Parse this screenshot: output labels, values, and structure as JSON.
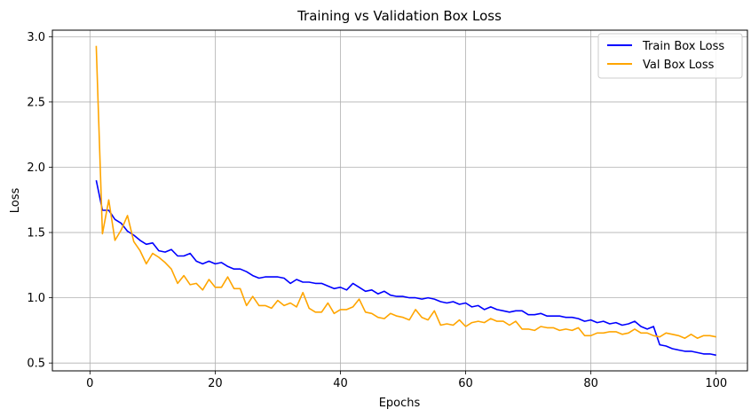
{
  "chart_data": {
    "type": "line",
    "title": "Training vs Validation Box Loss",
    "xlabel": "Epochs",
    "ylabel": "Loss",
    "xlim": [
      -6,
      105
    ],
    "ylim": [
      0.44,
      3.05
    ],
    "xticks": [
      0,
      20,
      40,
      60,
      80,
      100
    ],
    "yticks": [
      0.5,
      1.0,
      1.5,
      2.0,
      2.5,
      3.0
    ],
    "xtick_labels": [
      "0",
      "20",
      "40",
      "60",
      "80",
      "100"
    ],
    "ytick_labels": [
      "0.5",
      "1.0",
      "1.5",
      "2.0",
      "2.5",
      "3.0"
    ],
    "grid": true,
    "legend_position": "top-right",
    "x": [
      1,
      2,
      3,
      4,
      5,
      6,
      7,
      8,
      9,
      10,
      11,
      12,
      13,
      14,
      15,
      16,
      17,
      18,
      19,
      20,
      21,
      22,
      23,
      24,
      25,
      26,
      27,
      28,
      29,
      30,
      31,
      32,
      33,
      34,
      35,
      36,
      37,
      38,
      39,
      40,
      41,
      42,
      43,
      44,
      45,
      46,
      47,
      48,
      49,
      50,
      51,
      52,
      53,
      54,
      55,
      56,
      57,
      58,
      59,
      60,
      61,
      62,
      63,
      64,
      65,
      66,
      67,
      68,
      69,
      70,
      71,
      72,
      73,
      74,
      75,
      76,
      77,
      78,
      79,
      80,
      81,
      82,
      83,
      84,
      85,
      86,
      87,
      88,
      89,
      90,
      91,
      92,
      93,
      94,
      95,
      96,
      97,
      98,
      99,
      100
    ],
    "series": [
      {
        "name": "Train Box Loss",
        "color": "#0000ff",
        "values": [
          1.9,
          1.67,
          1.67,
          1.6,
          1.57,
          1.51,
          1.48,
          1.44,
          1.41,
          1.42,
          1.36,
          1.35,
          1.37,
          1.32,
          1.32,
          1.34,
          1.28,
          1.26,
          1.28,
          1.26,
          1.27,
          1.24,
          1.22,
          1.22,
          1.2,
          1.17,
          1.15,
          1.16,
          1.16,
          1.16,
          1.15,
          1.11,
          1.14,
          1.12,
          1.12,
          1.11,
          1.11,
          1.09,
          1.07,
          1.08,
          1.06,
          1.11,
          1.08,
          1.05,
          1.06,
          1.03,
          1.05,
          1.02,
          1.01,
          1.01,
          1.0,
          1.0,
          0.99,
          1.0,
          0.99,
          0.97,
          0.96,
          0.97,
          0.95,
          0.96,
          0.93,
          0.94,
          0.91,
          0.93,
          0.91,
          0.9,
          0.89,
          0.9,
          0.9,
          0.87,
          0.87,
          0.88,
          0.86,
          0.86,
          0.86,
          0.85,
          0.85,
          0.84,
          0.82,
          0.83,
          0.81,
          0.82,
          0.8,
          0.81,
          0.79,
          0.8,
          0.82,
          0.78,
          0.76,
          0.78,
          0.64,
          0.63,
          0.61,
          0.6,
          0.59,
          0.59,
          0.58,
          0.57,
          0.57,
          0.56
        ]
      },
      {
        "name": "Val Box Loss",
        "color": "#ffa500",
        "values": [
          2.93,
          1.49,
          1.75,
          1.44,
          1.52,
          1.63,
          1.43,
          1.36,
          1.26,
          1.34,
          1.31,
          1.27,
          1.22,
          1.11,
          1.17,
          1.1,
          1.11,
          1.06,
          1.14,
          1.08,
          1.08,
          1.16,
          1.07,
          1.07,
          0.94,
          1.01,
          0.94,
          0.94,
          0.92,
          0.98,
          0.94,
          0.96,
          0.93,
          1.04,
          0.92,
          0.89,
          0.89,
          0.96,
          0.88,
          0.91,
          0.91,
          0.93,
          0.99,
          0.89,
          0.88,
          0.85,
          0.84,
          0.88,
          0.86,
          0.85,
          0.83,
          0.91,
          0.85,
          0.83,
          0.9,
          0.79,
          0.8,
          0.79,
          0.83,
          0.78,
          0.81,
          0.82,
          0.81,
          0.84,
          0.82,
          0.82,
          0.79,
          0.82,
          0.76,
          0.76,
          0.75,
          0.78,
          0.77,
          0.77,
          0.75,
          0.76,
          0.75,
          0.77,
          0.71,
          0.71,
          0.73,
          0.73,
          0.74,
          0.74,
          0.72,
          0.73,
          0.76,
          0.73,
          0.73,
          0.71,
          0.7,
          0.73,
          0.72,
          0.71,
          0.69,
          0.72,
          0.69,
          0.71,
          0.71,
          0.7
        ]
      }
    ]
  }
}
